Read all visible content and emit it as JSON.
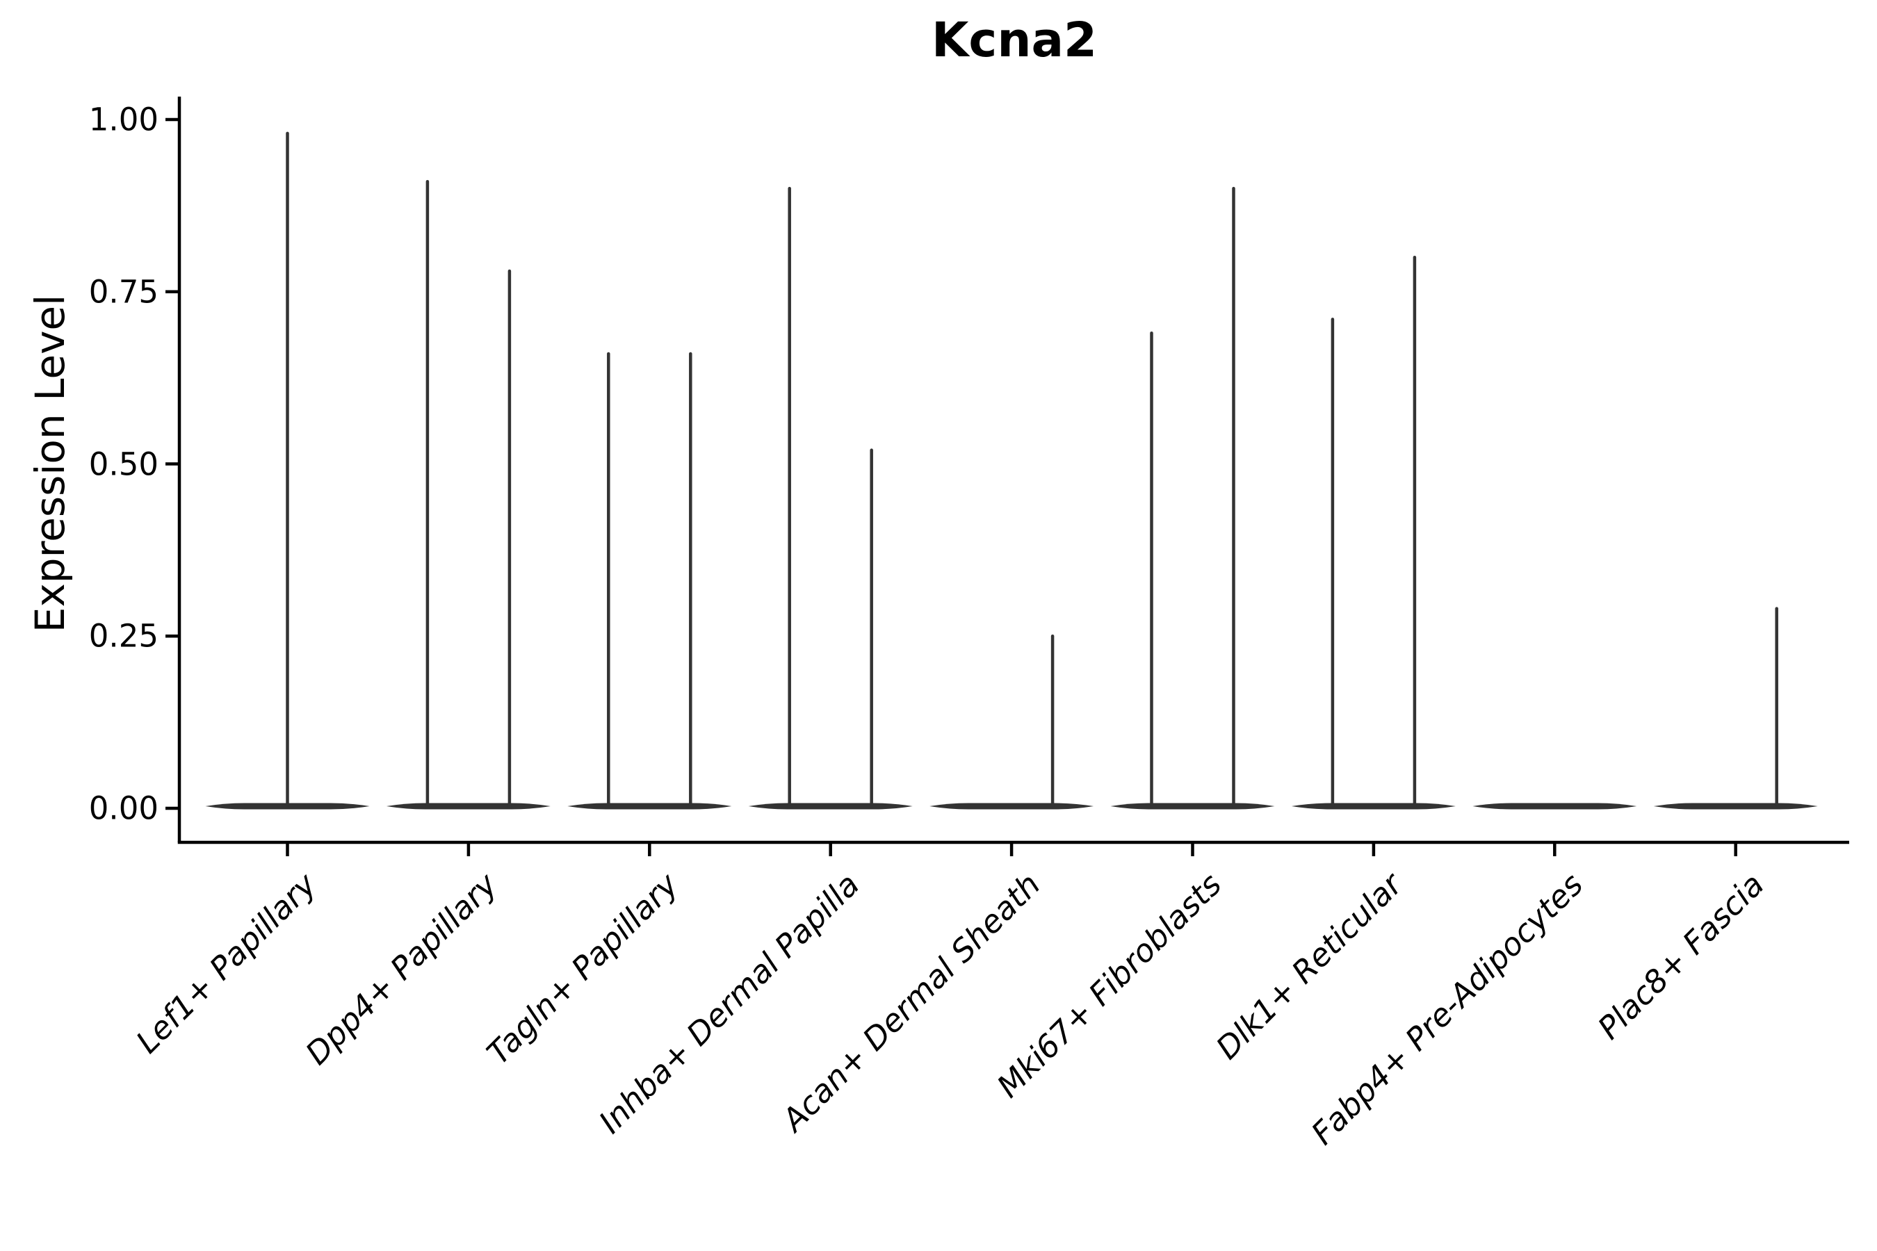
{
  "title": "Kcna2",
  "chart_data": {
    "type": "violin",
    "title": "Kcna2",
    "xlabel": "",
    "ylabel": "Expression Level",
    "ylim": [
      -0.05,
      1.03
    ],
    "yticks": [
      0.0,
      0.25,
      0.5,
      0.75,
      1.0
    ],
    "ytick_labels": [
      "0.00",
      "0.25",
      "0.50",
      "0.75",
      "1.00"
    ],
    "grid": false,
    "legend": "none",
    "note": "Each category is a violin collapsed to a flat band at expression 0 with thin vertical tails reaching the max expression; categories with two tails have two side-by-side sub-violins (left/right), single tails sit at center or right half.",
    "categories": [
      "Lef1+ Papillary",
      "Dpp4+ Papillary",
      "Tagln+ Papillary",
      "Inhba+ Dermal Papilla",
      "Acan+ Dermal Sheath",
      "Mki67+ Fibroblasts",
      "Dlk1+ Reticular",
      "Fabp4+ Pre-Adipocytes",
      "Plac8+ Fascia"
    ],
    "violins": [
      {
        "category": "Lef1+ Papillary",
        "baseline": 0,
        "tails": [
          {
            "pos": "center",
            "max": 0.98
          }
        ]
      },
      {
        "category": "Dpp4+ Papillary",
        "baseline": 0,
        "tails": [
          {
            "pos": "left",
            "max": 0.91
          },
          {
            "pos": "right",
            "max": 0.78
          }
        ]
      },
      {
        "category": "Tagln+ Papillary",
        "baseline": 0,
        "tails": [
          {
            "pos": "left",
            "max": 0.66
          },
          {
            "pos": "right",
            "max": 0.66
          }
        ]
      },
      {
        "category": "Inhba+ Dermal Papilla",
        "baseline": 0,
        "tails": [
          {
            "pos": "left",
            "max": 0.9
          },
          {
            "pos": "right",
            "max": 0.52
          }
        ]
      },
      {
        "category": "Acan+ Dermal Sheath",
        "baseline": 0,
        "tails": [
          {
            "pos": "right",
            "max": 0.25
          }
        ]
      },
      {
        "category": "Mki67+ Fibroblasts",
        "baseline": 0,
        "tails": [
          {
            "pos": "left",
            "max": 0.69
          },
          {
            "pos": "right",
            "max": 0.9
          }
        ]
      },
      {
        "category": "Dlk1+ Reticular",
        "baseline": 0,
        "tails": [
          {
            "pos": "left",
            "max": 0.71
          },
          {
            "pos": "right",
            "max": 0.8
          }
        ]
      },
      {
        "category": "Fabp4+ Pre-Adipocytes",
        "baseline": 0,
        "tails": []
      },
      {
        "category": "Plac8+ Fascia",
        "baseline": 0,
        "tails": [
          {
            "pos": "right",
            "max": 0.29
          }
        ]
      }
    ],
    "colors": {
      "violin": "#333333",
      "axis": "#000000",
      "text": "#000000",
      "background": "#ffffff"
    }
  }
}
